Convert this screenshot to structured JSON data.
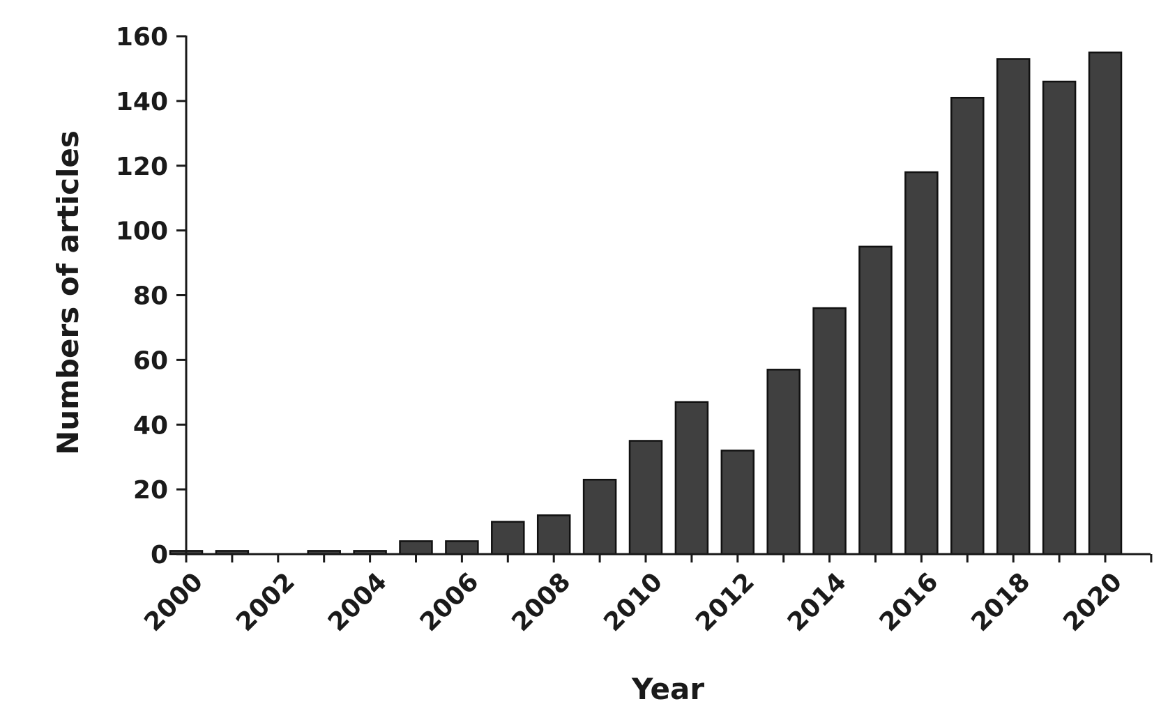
{
  "chart_data": {
    "type": "bar",
    "xlabel": "Year",
    "ylabel": "Numbers of articles",
    "ylim": [
      0,
      160
    ],
    "yticks": [
      0,
      20,
      40,
      60,
      80,
      100,
      120,
      140,
      160
    ],
    "categories": [
      "2000",
      "2001",
      "2002",
      "2003",
      "2004",
      "2005",
      "2006",
      "2007",
      "2008",
      "2009",
      "2010",
      "2011",
      "2012",
      "2013",
      "2014",
      "2015",
      "2016",
      "2017",
      "2018",
      "2019",
      "2020"
    ],
    "x_tick_labels": [
      "2000",
      "2002",
      "2004",
      "2006",
      "2008",
      "2010",
      "2012",
      "2014",
      "2016",
      "2018",
      "2020"
    ],
    "values": [
      1,
      1,
      0,
      1,
      1,
      4,
      4,
      10,
      12,
      23,
      35,
      47,
      32,
      57,
      76,
      95,
      118,
      141,
      153,
      146,
      155
    ],
    "grid": false,
    "legend": "none",
    "colors": {
      "bar_fill": "#404040",
      "bar_stroke": "#111111",
      "axis": "#1a1a1a"
    }
  }
}
